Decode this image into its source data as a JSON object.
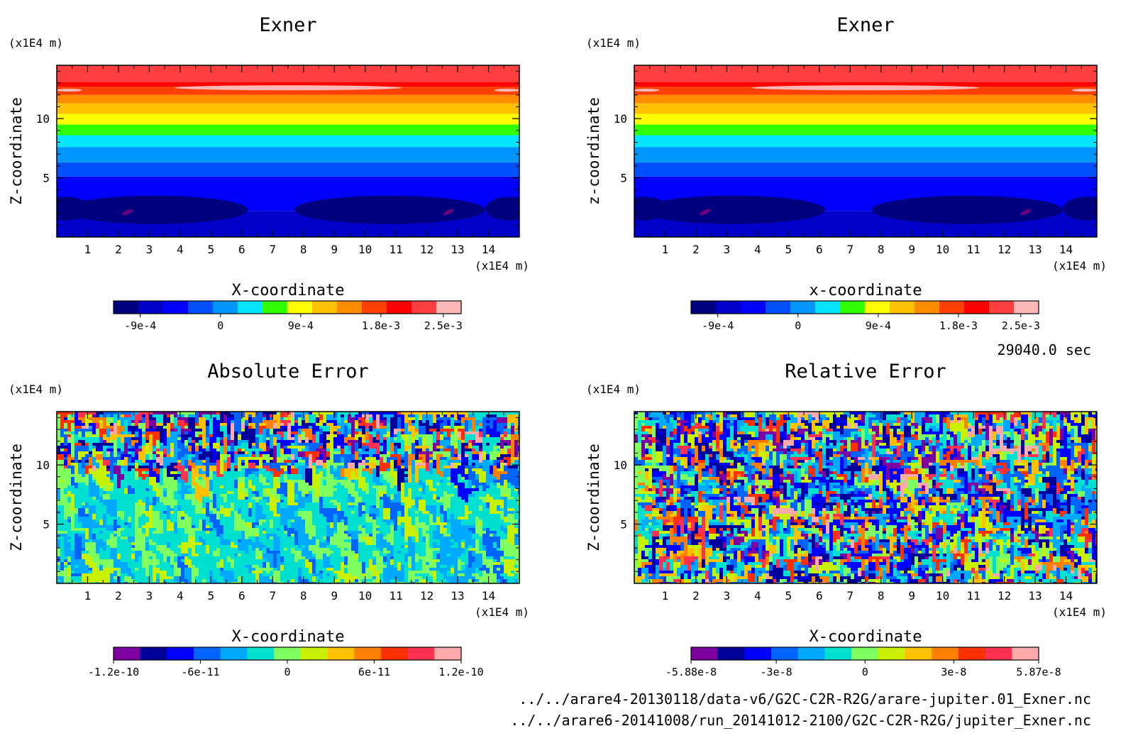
{
  "figure": {
    "time_label": "29040.0 sec",
    "file_lines": [
      "../../arare4-20130118/data-v6/G2C-C2R-R2G/arare-jupiter.01_Exner.nc",
      "../../arare6-20141008/run_20141012-2100/G2C-C2R-R2G/jupiter_Exner.nc"
    ]
  },
  "chart_data": [
    {
      "type": "heatmap",
      "title": "Exner",
      "xlabel": "X-coordinate",
      "ylabel": "Z-coordinate",
      "x_unit": "(x1E4 m)",
      "y_unit": "(x1E4 m)",
      "xticks": [
        "1",
        "2",
        "3",
        "4",
        "5",
        "6",
        "7",
        "8",
        "9",
        "10",
        "11",
        "12",
        "13",
        "14"
      ],
      "yticks": [
        "5",
        "10"
      ],
      "xlim": [
        0,
        15
      ],
      "ylim": [
        0,
        14.5
      ],
      "field": "layered",
      "colorbar": {
        "colors": [
          "#00007f",
          "#0000c8",
          "#0000ff",
          "#0050ff",
          "#0096ff",
          "#00e4ff",
          "#30ff00",
          "#ffff00",
          "#ffc000",
          "#ff8c00",
          "#ff4000",
          "#ff0000",
          "#ff3f3f",
          "#ffb8b8"
        ],
        "tick_labels": [
          "-9e-4",
          "0",
          "9e-4",
          "1.8e-3",
          "2.5e-3"
        ],
        "tick_values": [
          -0.0009,
          0,
          0.0009,
          0.0018,
          0.0025
        ],
        "range": [
          -0.0012,
          0.0027
        ]
      }
    },
    {
      "type": "heatmap",
      "title": "Exner",
      "xlabel": "x-coordinate",
      "ylabel": "z-coordinate",
      "x_unit": "(x1E4 m)",
      "y_unit": "(x1E4 m)",
      "xticks": [
        "1",
        "2",
        "3",
        "4",
        "5",
        "6",
        "7",
        "8",
        "9",
        "10",
        "11",
        "12",
        "13",
        "14"
      ],
      "yticks": [
        "5",
        "10"
      ],
      "xlim": [
        0,
        15
      ],
      "ylim": [
        0,
        14.5
      ],
      "field": "layered",
      "colorbar": {
        "colors": [
          "#00007f",
          "#0000c8",
          "#0000ff",
          "#0050ff",
          "#0096ff",
          "#00e4ff",
          "#30ff00",
          "#ffff00",
          "#ffc000",
          "#ff8c00",
          "#ff4000",
          "#ff0000",
          "#ff3f3f",
          "#ffb8b8"
        ],
        "tick_labels": [
          "-9e-4",
          "0",
          "9e-4",
          "1.8e-3",
          "2.5e-3"
        ],
        "tick_values": [
          -0.0009,
          0,
          0.0009,
          0.0018,
          0.0025
        ],
        "range": [
          -0.0012,
          0.0027
        ]
      }
    },
    {
      "type": "heatmap",
      "title": "Absolute Error",
      "xlabel": "X-coordinate",
      "ylabel": "Z-coordinate",
      "x_unit": "(x1E4 m)",
      "y_unit": "(x1E4 m)",
      "xticks": [
        "1",
        "2",
        "3",
        "4",
        "5",
        "6",
        "7",
        "8",
        "9",
        "10",
        "11",
        "12",
        "13",
        "14"
      ],
      "yticks": [
        "5",
        "10"
      ],
      "xlim": [
        0,
        15
      ],
      "ylim": [
        0,
        14.5
      ],
      "field": "noise-upper",
      "colorbar": {
        "colors": [
          "#7f00a0",
          "#00009b",
          "#0000ff",
          "#0064ff",
          "#00aaff",
          "#00e0d0",
          "#80ff60",
          "#c8f000",
          "#ffc000",
          "#ff8000",
          "#ff3000",
          "#ff3050",
          "#ffaaaa"
        ],
        "tick_labels": [
          "-1.2e-10",
          "-6e-11",
          "0",
          "6e-11",
          "1.2e-10"
        ],
        "tick_values": [
          -1.2e-10,
          -6e-11,
          0,
          6e-11,
          1.2e-10
        ],
        "range": [
          -1.2e-10,
          1.2e-10
        ]
      }
    },
    {
      "type": "heatmap",
      "title": "Relative Error",
      "xlabel": "X-coordinate",
      "ylabel": "Z-coordinate",
      "x_unit": "(x1E4 m)",
      "y_unit": "(x1E4 m)",
      "xticks": [
        "1",
        "2",
        "3",
        "4",
        "5",
        "6",
        "7",
        "8",
        "9",
        "10",
        "11",
        "12",
        "13",
        "14"
      ],
      "yticks": [
        "5",
        "10"
      ],
      "xlim": [
        0,
        15
      ],
      "ylim": [
        0,
        14.5
      ],
      "field": "noise-uniform",
      "colorbar": {
        "colors": [
          "#7f00a0",
          "#00009b",
          "#0000ff",
          "#0064ff",
          "#00aaff",
          "#00e0d0",
          "#80ff60",
          "#c8f000",
          "#ffc000",
          "#ff8000",
          "#ff3000",
          "#ff3050",
          "#ffaaaa"
        ],
        "tick_labels": [
          "-5.88e-8",
          "-3e-8",
          "0",
          "3e-8",
          "5.87e-8"
        ],
        "tick_values": [
          -5.88e-08,
          -3e-08,
          0,
          3e-08,
          5.87e-08
        ],
        "range": [
          -5.88e-08,
          5.87e-08
        ]
      }
    }
  ]
}
